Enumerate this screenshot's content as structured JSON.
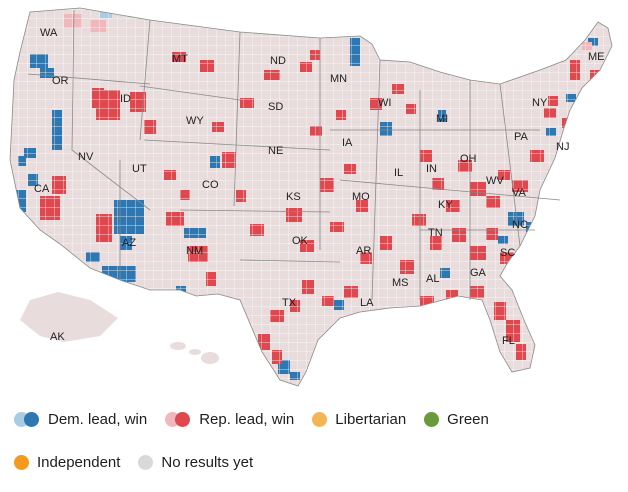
{
  "colors": {
    "no_results": "#e8dcdc",
    "county_line": "#ffffff",
    "state_line": "#8a8a8a",
    "dem_lead": "#a8cde3",
    "dem_win": "#2e77b0",
    "rep_lead": "#f0b8bc",
    "rep_win": "#e0484f",
    "libertarian": "#f2b657",
    "green": "#6a9a3a",
    "independent": "#f39a1f"
  },
  "state_labels": [
    "WA",
    "MT",
    "ND",
    "MN",
    "ME",
    "OR",
    "ID",
    "SD",
    "WI",
    "NY",
    "MI",
    "WY",
    "PA",
    "NJ",
    "NV",
    "UT",
    "NE",
    "IA",
    "OH",
    "IN",
    "CA",
    "CO",
    "IL",
    "WV",
    "KS",
    "MO",
    "KY",
    "VA",
    "TN",
    "NC",
    "OK",
    "AR",
    "AZ",
    "NM",
    "SC",
    "MS",
    "AL",
    "GA",
    "TX",
    "LA",
    "FL",
    "AK"
  ],
  "legend": {
    "dem": "Dem. lead, win",
    "rep": "Rep. lead, win",
    "libertarian": "Libertarian",
    "green": "Green",
    "independent": "Independent",
    "no_results": "No results yet"
  }
}
